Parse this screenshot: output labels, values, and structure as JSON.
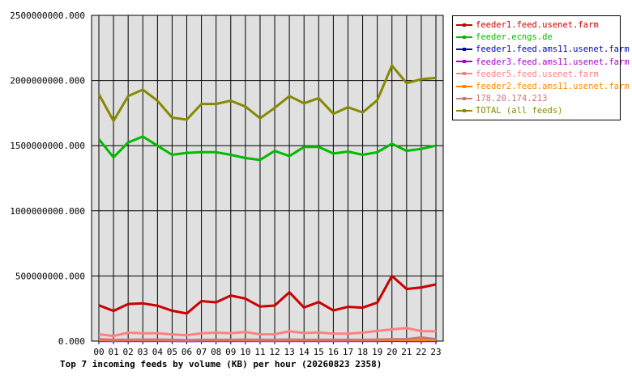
{
  "caption": "Top 7 incoming feeds by volume (KB) per hour (20260823 2358)",
  "chart_data": {
    "type": "line",
    "title": "Top 7 incoming feeds by volume (KB) per hour (20260823 2358)",
    "xlabel": "",
    "ylabel": "",
    "ylim": [
      0,
      2500000000
    ],
    "y_ticks": [
      "0.000",
      "500000000.000",
      "1000000000.000",
      "1500000000.000",
      "2000000000.000",
      "2500000000.000"
    ],
    "x": [
      "00",
      "01",
      "02",
      "03",
      "04",
      "05",
      "06",
      "07",
      "08",
      "09",
      "10",
      "11",
      "12",
      "13",
      "14",
      "15",
      "16",
      "17",
      "18",
      "19",
      "20",
      "21",
      "22",
      "23"
    ],
    "grid": true,
    "legend_position": "right",
    "plot_background": "#e0e0e0",
    "series": [
      {
        "name": "feeder1.feed.usenet.farm",
        "color": "#cc0000",
        "values": [
          275000000,
          232000000,
          285000000,
          290000000,
          272000000,
          233000000,
          212000000,
          307000000,
          298000000,
          350000000,
          326000000,
          265000000,
          273000000,
          375000000,
          258000000,
          300000000,
          235000000,
          263000000,
          257000000,
          296000000,
          500000000,
          400000000,
          412000000,
          435000000
        ]
      },
      {
        "name": "feeder.ecngs.de",
        "color": "#00bb00",
        "values": [
          1550000000,
          1410000000,
          1525000000,
          1570000000,
          1500000000,
          1430000000,
          1445000000,
          1450000000,
          1450000000,
          1430000000,
          1405000000,
          1390000000,
          1460000000,
          1420000000,
          1490000000,
          1490000000,
          1440000000,
          1455000000,
          1430000000,
          1450000000,
          1515000000,
          1460000000,
          1475000000,
          1500000000
        ]
      },
      {
        "name": "feeder1.feed.ams11.usenet.farm",
        "color": "#0000bb",
        "values": [
          4000000,
          3000000,
          3000000,
          4000000,
          5000000,
          3000000,
          2000000,
          3000000,
          3000000,
          3000000,
          4000000,
          3000000,
          3000000,
          4000000,
          3000000,
          3000000,
          3000000,
          3000000,
          3000000,
          3000000,
          5000000,
          4000000,
          4000000,
          4000000
        ]
      },
      {
        "name": "feeder3.feed.ams11.usenet.farm",
        "color": "#aa00cc",
        "values": [
          2000000,
          2000000,
          2000000,
          2000000,
          2000000,
          2000000,
          2000000,
          2000000,
          2000000,
          2000000,
          2000000,
          2000000,
          2000000,
          2000000,
          2000000,
          2000000,
          2000000,
          2000000,
          2000000,
          2000000,
          3000000,
          2000000,
          2000000,
          2000000
        ]
      },
      {
        "name": "feeder5.feed.usenet.farm",
        "color": "#ff8080",
        "values": [
          52000000,
          40000000,
          65000000,
          60000000,
          60000000,
          52000000,
          45000000,
          60000000,
          65000000,
          60000000,
          70000000,
          52000000,
          53000000,
          75000000,
          62000000,
          67000000,
          58000000,
          57000000,
          65000000,
          78000000,
          90000000,
          100000000,
          77000000,
          75000000
        ]
      },
      {
        "name": "feeder2.feed.ams11.usenet.farm",
        "color": "#ff8800",
        "values": [
          8000000,
          6000000,
          8000000,
          8000000,
          7000000,
          6000000,
          5000000,
          7000000,
          7000000,
          7000000,
          8000000,
          6000000,
          6000000,
          8000000,
          7000000,
          8000000,
          6000000,
          7000000,
          7000000,
          8000000,
          10000000,
          9000000,
          9000000,
          9000000
        ]
      },
      {
        "name": "178.20.174.213",
        "color": "#cc7777",
        "values": [
          15000000,
          10000000,
          10000000,
          12000000,
          12000000,
          10000000,
          8000000,
          10000000,
          10000000,
          10000000,
          12000000,
          10000000,
          10000000,
          12000000,
          10000000,
          10000000,
          10000000,
          10000000,
          10000000,
          12000000,
          15000000,
          15000000,
          28000000,
          15000000
        ]
      },
      {
        "name": "TOTAL (all feeds)",
        "color": "#888800",
        "values": [
          1895000000,
          1690000000,
          1880000000,
          1930000000,
          1845000000,
          1715000000,
          1700000000,
          1820000000,
          1820000000,
          1845000000,
          1800000000,
          1710000000,
          1790000000,
          1880000000,
          1825000000,
          1865000000,
          1745000000,
          1795000000,
          1755000000,
          1850000000,
          2115000000,
          1980000000,
          2010000000,
          2020000000
        ]
      }
    ]
  }
}
